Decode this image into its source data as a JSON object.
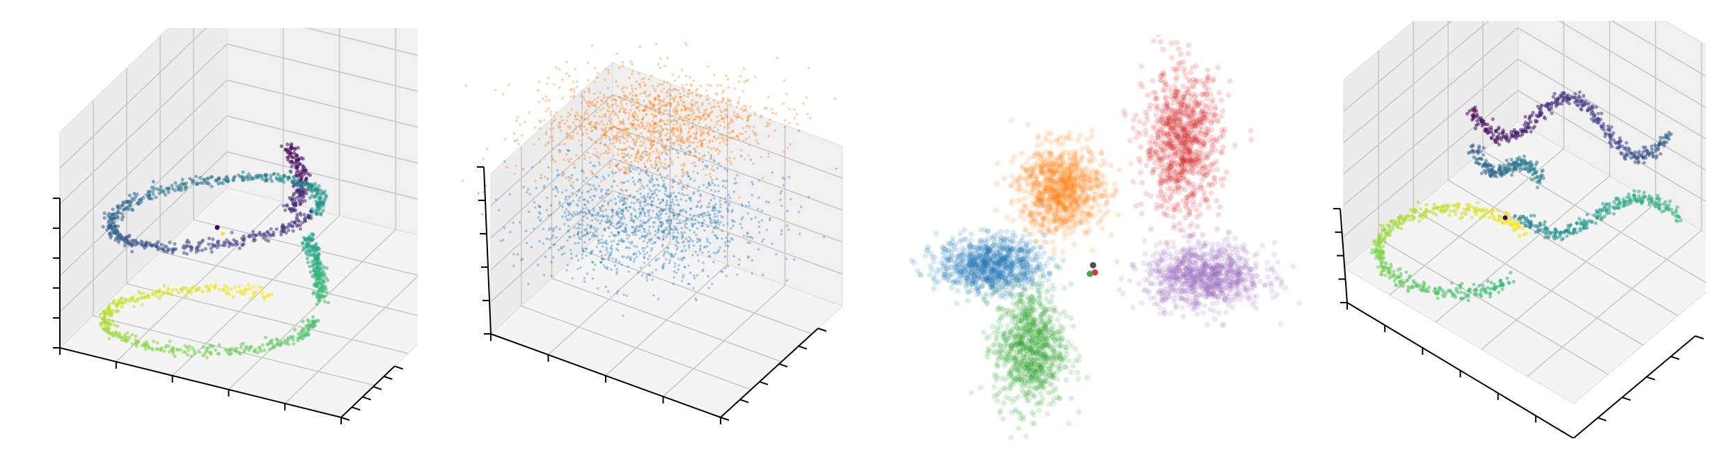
{
  "chart_data": [
    {
      "type": "scatter",
      "projection": "3d",
      "title": "",
      "xlabel": "",
      "ylabel": "",
      "zlabel": "",
      "tick_labels_shown": false,
      "grid": true,
      "colormap": "viridis",
      "shape": "spiral ring rising from a lower yellow-green loop to an upper teal-blue loop, ending in a purple tail",
      "point_count_estimate": 2000,
      "extra_markers": [
        {
          "color": "#440154"
        },
        {
          "color": "#fde725"
        }
      ]
    },
    {
      "type": "scatter",
      "projection": "3d",
      "title": "",
      "xlabel": "",
      "ylabel": "",
      "zlabel": "",
      "tick_labels_shown": false,
      "grid": true,
      "series": [
        {
          "color": "#ff7f0e",
          "cluster": "upper"
        },
        {
          "color": "#1f77b4",
          "cluster": "lower"
        }
      ],
      "point_count_estimate": 3000
    },
    {
      "type": "scatter",
      "projection": "2d",
      "title": "",
      "axes_visible": false,
      "series": [
        {
          "color": "#d62728",
          "center": [
            1.4,
            1.7
          ],
          "spread": [
            0.55,
            0.9
          ]
        },
        {
          "color": "#ff7f0e",
          "center": [
            -0.5,
            1.05
          ],
          "spread": [
            0.6,
            0.55
          ]
        },
        {
          "color": "#1f77b4",
          "center": [
            -1.6,
            0.0
          ],
          "spread": [
            0.75,
            0.35
          ]
        },
        {
          "color": "#2ca02c",
          "center": [
            -1.0,
            -1.15
          ],
          "spread": [
            0.5,
            0.75
          ]
        },
        {
          "color": "#9467bd",
          "center": [
            1.75,
            -0.15
          ],
          "spread": [
            0.85,
            0.4
          ]
        }
      ],
      "xlim": [
        -3.5,
        3.5
      ],
      "ylim": [
        -2.5,
        3.2
      ],
      "extra_markers": [
        {
          "color": "#3b3b3b",
          "x": 0.0,
          "y": 0.0
        },
        {
          "color": "#d62728",
          "x": 0.03,
          "y": -0.1
        },
        {
          "color": "#2ca02c",
          "x": -0.05,
          "y": -0.12
        }
      ]
    },
    {
      "type": "scatter",
      "projection": "3d",
      "title": "",
      "xlabel": "",
      "ylabel": "",
      "zlabel": "",
      "tick_labels_shown": false,
      "grid": true,
      "colormap": "viridis",
      "shape": "wavy curve snaking from upper purple loop through teal to yellow-green lower loop",
      "point_count_estimate": 2000,
      "extra_markers": [
        {
          "color": "#440154"
        }
      ]
    }
  ]
}
